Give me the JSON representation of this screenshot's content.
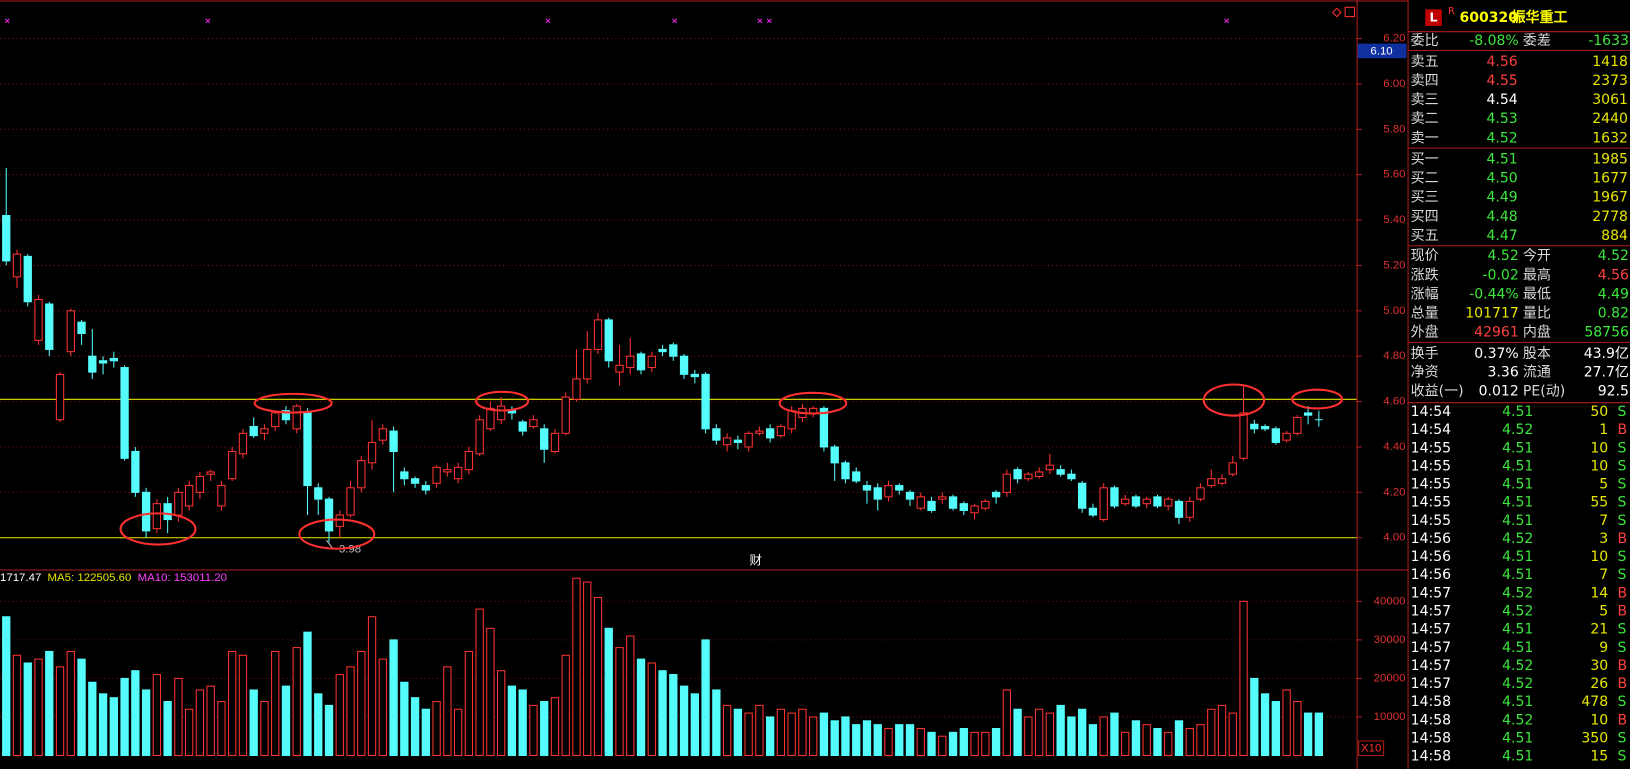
{
  "chart_data": [
    {
      "type": "candlestick",
      "ylim": [
        3.86,
        6.37
      ],
      "yticks": [
        {
          "value": 4,
          "label": "4.00"
        },
        {
          "value": 4.2,
          "label": "4.20"
        },
        {
          "value": 4.4,
          "label": "4.40"
        },
        {
          "value": 4.6,
          "label": "4.60"
        },
        {
          "value": 4.8,
          "label": "4.80"
        },
        {
          "value": 5,
          "label": "5.00"
        },
        {
          "value": 5.2,
          "label": "5.20"
        },
        {
          "value": 5.4,
          "label": "5.40"
        },
        {
          "value": 5.6,
          "label": "5.60"
        },
        {
          "value": 5.8,
          "label": "5.80"
        },
        {
          "value": 6,
          "label": "6.00"
        },
        {
          "value": 6.2,
          "label": "6.20"
        }
      ],
      "grid": true,
      "up_color": "#ff3232",
      "down_color": "#54fcfc",
      "hlines": [
        4.61,
        4.0
      ],
      "hline_color": "#e6e600",
      "cursor_price": "6.10",
      "low_label": 3.98,
      "marker_text": "财",
      "open": [
        5.42,
        5.15,
        5.24,
        4.87,
        5.03,
        4.52,
        4.82,
        4.95,
        4.8,
        4.78,
        4.79,
        4.75,
        4.38,
        4.2,
        4.04,
        4.15,
        4.1,
        4.14,
        4.2,
        4.28,
        4.14,
        4.26,
        4.37,
        4.49,
        4.46,
        4.49,
        4.56,
        4.48,
        4.55,
        4.22,
        4.17,
        4.05,
        4.1,
        4.22,
        4.33,
        4.43,
        4.47,
        4.29,
        4.26,
        4.23,
        4.24,
        4.29,
        4.26,
        4.3,
        4.37,
        4.48,
        4.52,
        4.56,
        4.51,
        4.49,
        4.48,
        4.38,
        4.46,
        4.61,
        4.7,
        4.83,
        4.96,
        4.73,
        4.75,
        4.81,
        4.75,
        4.83,
        4.85,
        4.8,
        4.72,
        4.72,
        4.48,
        4.41,
        4.43,
        4.4,
        4.46,
        4.48,
        4.45,
        4.48,
        4.53,
        4.55,
        4.57,
        4.4,
        4.33,
        4.29,
        4.23,
        4.22,
        4.18,
        4.23,
        4.2,
        4.13,
        4.16,
        4.17,
        4.18,
        4.15,
        4.11,
        4.13,
        4.2,
        4.2,
        4.3,
        4.26,
        4.27,
        4.3,
        4.3,
        4.28,
        4.24,
        4.13,
        4.08,
        4.22,
        4.15,
        4.18,
        4.15,
        4.18,
        4.14,
        4.16,
        4.09,
        4.17,
        4.23,
        4.24,
        4.28,
        4.35,
        4.5,
        4.49,
        4.48,
        4.43,
        4.46,
        4.55,
        4.52
      ],
      "high": [
        5.63,
        5.27,
        5.25,
        5.07,
        5.04,
        4.73,
        5.01,
        4.96,
        4.92,
        4.8,
        4.82,
        4.76,
        4.4,
        4.22,
        4.17,
        4.18,
        4.22,
        4.25,
        4.29,
        4.3,
        4.25,
        4.4,
        4.48,
        4.53,
        4.5,
        4.56,
        4.58,
        4.59,
        4.57,
        4.24,
        4.18,
        4.12,
        4.25,
        4.36,
        4.52,
        4.5,
        4.49,
        4.31,
        4.27,
        4.25,
        4.32,
        4.33,
        4.33,
        4.4,
        4.54,
        4.6,
        4.62,
        4.58,
        4.52,
        4.54,
        4.5,
        4.48,
        4.64,
        4.83,
        4.91,
        4.99,
        4.97,
        4.85,
        4.88,
        4.82,
        4.82,
        4.85,
        4.86,
        4.81,
        4.74,
        4.73,
        4.5,
        4.46,
        4.45,
        4.47,
        4.49,
        4.5,
        4.5,
        4.58,
        4.59,
        4.58,
        4.58,
        4.41,
        4.34,
        4.31,
        4.25,
        4.24,
        4.25,
        4.24,
        4.21,
        4.2,
        4.18,
        4.2,
        4.19,
        4.16,
        4.15,
        4.17,
        4.21,
        4.3,
        4.31,
        4.29,
        4.31,
        4.37,
        4.32,
        4.3,
        4.25,
        4.15,
        4.24,
        4.23,
        4.19,
        4.19,
        4.18,
        4.19,
        4.18,
        4.17,
        4.18,
        4.24,
        4.3,
        4.28,
        4.36,
        4.67,
        4.52,
        4.5,
        4.49,
        4.47,
        4.54,
        4.58,
        4.56
      ],
      "low": [
        5.2,
        5.1,
        5.02,
        4.85,
        4.8,
        4.51,
        4.8,
        4.85,
        4.7,
        4.72,
        4.75,
        4.34,
        4.18,
        4.0,
        4.02,
        4.02,
        4.07,
        4.12,
        4.17,
        4.25,
        4.12,
        4.25,
        4.35,
        4.44,
        4.43,
        4.47,
        4.5,
        4.46,
        4.1,
        4.1,
        3.98,
        4.0,
        4.09,
        4.2,
        4.3,
        4.41,
        4.2,
        4.23,
        4.22,
        4.19,
        4.22,
        4.27,
        4.24,
        4.28,
        4.36,
        4.47,
        4.5,
        4.52,
        4.45,
        4.48,
        4.33,
        4.37,
        4.45,
        4.6,
        4.68,
        4.81,
        4.75,
        4.67,
        4.72,
        4.72,
        4.73,
        4.8,
        4.78,
        4.7,
        4.68,
        4.46,
        4.41,
        4.38,
        4.39,
        4.38,
        4.45,
        4.42,
        4.44,
        4.46,
        4.51,
        4.53,
        4.38,
        4.25,
        4.24,
        4.24,
        4.15,
        4.12,
        4.16,
        4.19,
        4.14,
        4.12,
        4.11,
        4.15,
        4.12,
        4.1,
        4.08,
        4.12,
        4.15,
        4.18,
        4.24,
        4.25,
        4.26,
        4.28,
        4.27,
        4.25,
        4.11,
        4.09,
        4.07,
        4.13,
        4.14,
        4.13,
        4.13,
        4.13,
        4.12,
        4.06,
        4.07,
        4.16,
        4.22,
        4.23,
        4.27,
        4.34,
        4.46,
        4.47,
        4.41,
        4.42,
        4.45,
        4.5,
        4.49
      ],
      "close": [
        5.22,
        5.25,
        5.04,
        5.05,
        4.83,
        4.72,
        5.0,
        4.9,
        4.73,
        4.77,
        4.78,
        4.35,
        4.2,
        4.03,
        4.15,
        4.08,
        4.2,
        4.23,
        4.27,
        4.29,
        4.23,
        4.38,
        4.46,
        4.45,
        4.48,
        4.55,
        4.52,
        4.58,
        4.23,
        4.17,
        4.03,
        4.1,
        4.22,
        4.34,
        4.42,
        4.48,
        4.38,
        4.26,
        4.24,
        4.21,
        4.31,
        4.3,
        4.31,
        4.38,
        4.52,
        4.57,
        4.58,
        4.55,
        4.47,
        4.52,
        4.39,
        4.46,
        4.62,
        4.7,
        4.83,
        4.96,
        4.78,
        4.76,
        4.8,
        4.74,
        4.8,
        4.82,
        4.8,
        4.72,
        4.71,
        4.48,
        4.43,
        4.44,
        4.42,
        4.46,
        4.47,
        4.44,
        4.49,
        4.56,
        4.57,
        4.57,
        4.4,
        4.33,
        4.26,
        4.25,
        4.21,
        4.17,
        4.23,
        4.21,
        4.17,
        4.18,
        4.12,
        4.18,
        4.13,
        4.12,
        4.14,
        4.16,
        4.18,
        4.28,
        4.26,
        4.28,
        4.29,
        4.32,
        4.28,
        4.26,
        4.13,
        4.1,
        4.22,
        4.14,
        4.17,
        4.14,
        4.17,
        4.14,
        4.17,
        4.09,
        4.16,
        4.22,
        4.26,
        4.26,
        4.33,
        4.55,
        4.48,
        4.48,
        4.42,
        4.46,
        4.53,
        4.54,
        4.52
      ]
    },
    {
      "type": "bar",
      "ylim": [
        0,
        48000
      ],
      "yticks": [
        10000,
        20000,
        30000,
        40000
      ],
      "grid": true,
      "legend": [
        {
          "text": "1717.47",
          "color": "#ffffff"
        },
        {
          "text": "MA5: 122505.60",
          "color": "#e6e600"
        },
        {
          "text": "MA10: 153011.20",
          "color": "#ff40ff"
        }
      ],
      "unit_label": "X10",
      "values": [
        36000,
        26000,
        24000,
        25000,
        27000,
        23000,
        27000,
        25000,
        19000,
        16000,
        15000,
        20000,
        22000,
        17000,
        21000,
        14000,
        20000,
        12000,
        17000,
        18000,
        14000,
        27000,
        26000,
        17000,
        14000,
        27000,
        18000,
        28000,
        32000,
        16000,
        13000,
        21000,
        23000,
        27000,
        36000,
        25000,
        30000,
        19000,
        15000,
        12000,
        14000,
        23000,
        12000,
        27000,
        38000,
        33000,
        22000,
        18000,
        17000,
        13000,
        14000,
        15000,
        26000,
        46000,
        45000,
        41000,
        33000,
        28000,
        31000,
        25000,
        24000,
        22000,
        21000,
        18000,
        16000,
        30000,
        17000,
        13000,
        12000,
        11000,
        13000,
        10000,
        12000,
        11000,
        12000,
        10000,
        11000,
        9000,
        10000,
        8000,
        9000,
        8000,
        7000,
        8000,
        8000,
        7000,
        6000,
        5000,
        6000,
        7000,
        6000,
        6000,
        7000,
        17000,
        12000,
        10000,
        12000,
        11000,
        13000,
        10000,
        12000,
        8000,
        10000,
        11000,
        6000,
        9000,
        8000,
        7000,
        6000,
        9000,
        7000,
        8000,
        12000,
        13000,
        11000,
        40000,
        20000,
        16000,
        14000,
        17000,
        14000,
        11000,
        11000
      ]
    }
  ],
  "quote_panel": {
    "badge": "L",
    "badge_sup": "R",
    "code": "600320",
    "name": "振华重工",
    "ratio": [
      {
        "label": "委比",
        "value": "-8.08%",
        "color": "#3ce63c"
      },
      {
        "label": "委差",
        "value": "-1633",
        "color": "#3ce63c"
      }
    ],
    "asks": [
      {
        "label": "卖五",
        "price": "4.56",
        "volume": "1418",
        "color": "#ff4040"
      },
      {
        "label": "卖四",
        "price": "4.55",
        "volume": "2373",
        "color": "#ff4040"
      },
      {
        "label": "卖三",
        "price": "4.54",
        "volume": "3061",
        "color": "#ffffff"
      },
      {
        "label": "卖二",
        "price": "4.53",
        "volume": "2440",
        "color": "#3ce63c"
      },
      {
        "label": "卖一",
        "price": "4.52",
        "volume": "1632",
        "color": "#3ce63c"
      }
    ],
    "bids": [
      {
        "label": "买一",
        "price": "4.51",
        "volume": "1985",
        "color": "#3ce63c"
      },
      {
        "label": "买二",
        "price": "4.50",
        "volume": "1677",
        "color": "#3ce63c"
      },
      {
        "label": "买三",
        "price": "4.49",
        "volume": "1967",
        "color": "#3ce63c"
      },
      {
        "label": "买四",
        "price": "4.48",
        "volume": "2778",
        "color": "#3ce63c"
      },
      {
        "label": "买五",
        "price": "4.47",
        "volume": "884",
        "color": "#3ce63c"
      }
    ],
    "volume_color": "#e6e600",
    "stats": [
      [
        {
          "label": "现价",
          "value": "4.52",
          "color": "#3ce63c"
        },
        {
          "label": "今开",
          "value": "4.52",
          "color": "#3ce63c"
        }
      ],
      [
        {
          "label": "涨跌",
          "value": "-0.02",
          "color": "#3ce63c"
        },
        {
          "label": "最高",
          "value": "4.56",
          "color": "#ff4040"
        }
      ],
      [
        {
          "label": "涨幅",
          "value": "-0.44%",
          "color": "#3ce63c"
        },
        {
          "label": "最低",
          "value": "4.49",
          "color": "#3ce63c"
        }
      ],
      [
        {
          "label": "总量",
          "value": "101717",
          "color": "#e6e600"
        },
        {
          "label": "量比",
          "value": "0.82",
          "color": "#3ce63c"
        }
      ],
      [
        {
          "label": "外盘",
          "value": "42961",
          "color": "#ff4040"
        },
        {
          "label": "内盘",
          "value": "58756",
          "color": "#3ce63c"
        }
      ],
      [
        {
          "label": "换手",
          "value": "0.37%",
          "color": "#ffffff"
        },
        {
          "label": "股本",
          "value": "43.9亿",
          "color": "#ffffff"
        }
      ],
      [
        {
          "label": "净资",
          "value": "3.36",
          "color": "#ffffff"
        },
        {
          "label": "流通",
          "value": "27.7亿",
          "color": "#ffffff"
        }
      ],
      [
        {
          "label": "收益(一)",
          "value": "0.012",
          "color": "#ffffff"
        },
        {
          "label": "PE(动)",
          "value": "92.5",
          "color": "#ffffff"
        }
      ]
    ],
    "side_colors": {
      "S": "#3ce63c",
      "B": "#ff4040"
    },
    "trades": [
      {
        "time": "14:54",
        "price": "4.51",
        "volume": "50",
        "side": "S"
      },
      {
        "time": "14:54",
        "price": "4.52",
        "volume": "1",
        "side": "B"
      },
      {
        "time": "14:55",
        "price": "4.51",
        "volume": "10",
        "side": "S"
      },
      {
        "time": "14:55",
        "price": "4.51",
        "volume": "10",
        "side": "S"
      },
      {
        "time": "14:55",
        "price": "4.51",
        "volume": "5",
        "side": "S"
      },
      {
        "time": "14:55",
        "price": "4.51",
        "volume": "55",
        "side": "S"
      },
      {
        "time": "14:55",
        "price": "4.51",
        "volume": "7",
        "side": "S"
      },
      {
        "time": "14:56",
        "price": "4.52",
        "volume": "3",
        "side": "B"
      },
      {
        "time": "14:56",
        "price": "4.51",
        "volume": "10",
        "side": "S"
      },
      {
        "time": "14:56",
        "price": "4.51",
        "volume": "7",
        "side": "S"
      },
      {
        "time": "14:57",
        "price": "4.52",
        "volume": "14",
        "side": "B"
      },
      {
        "time": "14:57",
        "price": "4.52",
        "volume": "5",
        "side": "B"
      },
      {
        "time": "14:57",
        "price": "4.51",
        "volume": "21",
        "side": "S"
      },
      {
        "time": "14:57",
        "price": "4.51",
        "volume": "9",
        "side": "S"
      },
      {
        "time": "14:57",
        "price": "4.52",
        "volume": "30",
        "side": "B"
      },
      {
        "time": "14:57",
        "price": "4.52",
        "volume": "26",
        "side": "B"
      },
      {
        "time": "14:58",
        "price": "4.51",
        "volume": "478",
        "side": "S"
      },
      {
        "time": "14:58",
        "price": "4.52",
        "volume": "10",
        "side": "B"
      },
      {
        "time": "14:58",
        "price": "4.51",
        "volume": "350",
        "side": "S"
      },
      {
        "time": "14:58",
        "price": "4.51",
        "volume": "15",
        "side": "S"
      }
    ]
  }
}
